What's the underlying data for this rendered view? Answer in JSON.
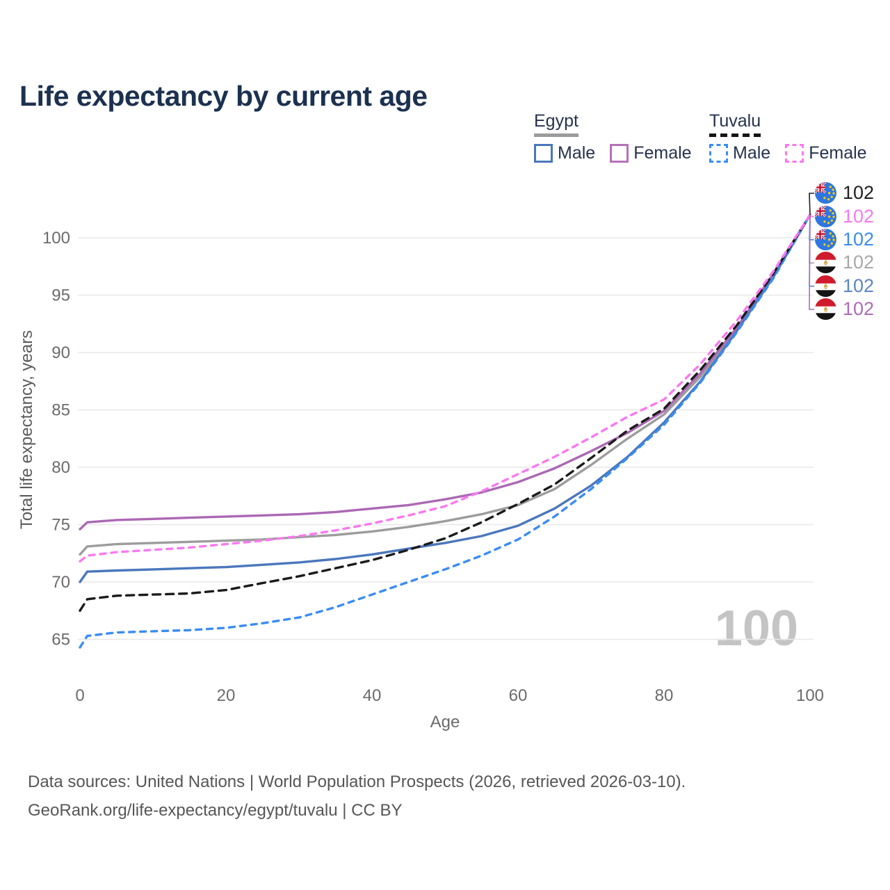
{
  "title": "Life expectancy by current age",
  "legend": {
    "groups": [
      {
        "label": "Egypt",
        "line_style": "solid",
        "underline_color": "#9b9b9b",
        "items": [
          {
            "label": "Male",
            "color": "#4a77bc",
            "dashed": false
          },
          {
            "label": "Female",
            "color": "#b671b8",
            "dashed": false
          }
        ]
      },
      {
        "label": "Tuvalu",
        "line_style": "dashed",
        "underline_color": "#141414",
        "items": [
          {
            "label": "Male",
            "color": "#3a8cf4",
            "dashed": true
          },
          {
            "label": "Female",
            "color": "#fa78f0",
            "dashed": true
          }
        ]
      }
    ]
  },
  "chart_data": {
    "type": "line",
    "title": "Life expectancy by current age",
    "xlabel": "Age",
    "ylabel": "Total life expectancy, years",
    "xlim": [
      0,
      100
    ],
    "ylim": [
      63,
      103
    ],
    "x_ticks": [
      0,
      20,
      40,
      60,
      80,
      100
    ],
    "y_ticks": [
      65,
      70,
      75,
      80,
      85,
      90,
      95,
      100
    ],
    "grid": "horizontal",
    "legend_position": "top-right",
    "x": [
      0,
      1,
      5,
      10,
      15,
      20,
      25,
      30,
      35,
      40,
      45,
      50,
      55,
      60,
      65,
      70,
      75,
      80,
      85,
      90,
      95,
      100
    ],
    "series": [
      {
        "name": "egypt-total",
        "country": "Egypt",
        "sex": "both",
        "color": "#9c9c9c",
        "dashed": false,
        "values": [
          72.4,
          73.1,
          73.3,
          73.4,
          73.5,
          73.6,
          73.7,
          73.9,
          74.1,
          74.4,
          74.8,
          75.3,
          75.9,
          76.7,
          78.1,
          80.2,
          82.5,
          84.6,
          87.9,
          92.0,
          96.7,
          102
        ]
      },
      {
        "name": "egypt-female",
        "country": "Egypt",
        "sex": "female",
        "color": "#ab68b4",
        "dashed": false,
        "values": [
          74.6,
          75.2,
          75.4,
          75.5,
          75.6,
          75.7,
          75.8,
          75.9,
          76.1,
          76.4,
          76.7,
          77.2,
          77.8,
          78.7,
          79.9,
          81.4,
          83.0,
          84.9,
          88.2,
          92.2,
          96.9,
          102
        ]
      },
      {
        "name": "egypt-male",
        "country": "Egypt",
        "sex": "male",
        "color": "#4a77bc",
        "dashed": false,
        "values": [
          70.0,
          70.9,
          71.0,
          71.1,
          71.2,
          71.3,
          71.5,
          71.7,
          72.0,
          72.4,
          72.9,
          73.4,
          74.0,
          74.9,
          76.4,
          78.4,
          80.9,
          83.9,
          87.5,
          91.9,
          96.6,
          102
        ]
      },
      {
        "name": "tuvalu-male",
        "country": "Tuvalu",
        "sex": "male",
        "color": "#3a8cf4",
        "dashed": true,
        "values": [
          64.3,
          65.3,
          65.6,
          65.7,
          65.8,
          66.0,
          66.4,
          66.9,
          67.8,
          68.9,
          70.0,
          71.1,
          72.3,
          73.7,
          75.7,
          78.1,
          80.8,
          83.7,
          87.4,
          91.8,
          96.5,
          102
        ]
      },
      {
        "name": "tuvalu-total",
        "country": "Tuvalu",
        "sex": "both",
        "color": "#1b1b1b",
        "dashed": true,
        "values": [
          67.5,
          68.5,
          68.8,
          68.9,
          69.0,
          69.3,
          69.9,
          70.5,
          71.2,
          71.9,
          72.8,
          73.8,
          75.2,
          76.8,
          78.5,
          80.8,
          83.2,
          85.1,
          88.5,
          92.4,
          96.9,
          102
        ]
      },
      {
        "name": "tuvalu-female",
        "country": "Tuvalu",
        "sex": "female",
        "color": "#fa78f0",
        "dashed": true,
        "values": [
          71.8,
          72.3,
          72.6,
          72.8,
          73.0,
          73.3,
          73.6,
          74.0,
          74.5,
          75.1,
          75.8,
          76.6,
          77.9,
          79.4,
          80.9,
          82.6,
          84.4,
          85.9,
          89.0,
          92.8,
          97.1,
          102
        ]
      }
    ]
  },
  "end_labels": [
    {
      "country": "Tuvalu",
      "series": "tuvalu-total",
      "flag": "tuvalu-flag-icon",
      "value": "102",
      "color": "#1f1f1f"
    },
    {
      "country": "Tuvalu",
      "series": "tuvalu-female",
      "flag": "tuvalu-flag-icon",
      "value": "102",
      "color": "#fa78f0"
    },
    {
      "country": "Tuvalu",
      "series": "tuvalu-male",
      "flag": "tuvalu-flag-icon",
      "value": "102",
      "color": "#3a8cf4"
    },
    {
      "country": "Egypt",
      "series": "egypt-total",
      "flag": "egypt-flag-icon",
      "value": "102",
      "color": "#a8a8a8"
    },
    {
      "country": "Egypt",
      "series": "egypt-male",
      "flag": "egypt-flag-icon",
      "value": "102",
      "color": "#5b85c6"
    },
    {
      "country": "Egypt",
      "series": "egypt-female",
      "flag": "egypt-flag-icon",
      "value": "102",
      "color": "#ad6cb6"
    }
  ],
  "watermark": "100",
  "footer": {
    "line1": "Data sources: United Nations | World Population Prospects (2026, retrieved 2026-03-10).",
    "line2": "GeoRank.org/life-expectancy/egypt/tuvalu | CC BY"
  }
}
